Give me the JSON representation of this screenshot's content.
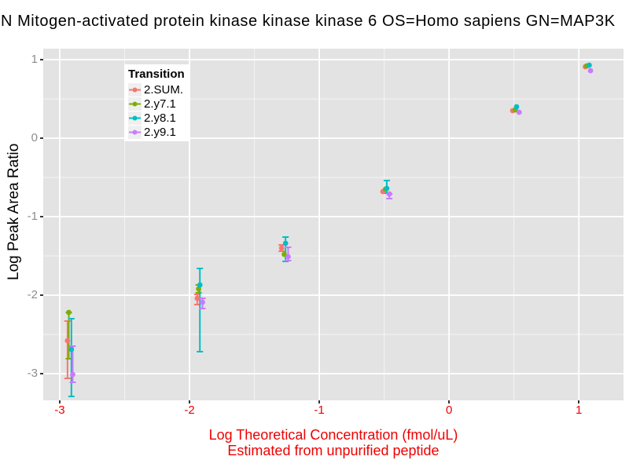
{
  "title": "N Mitogen-activated protein kinase kinase kinase 6 OS=Homo sapiens GN=MAP3K",
  "colors": {
    "panel_background": "#E3E3E3",
    "gridline": "#FFFFFF",
    "x_axis_text": "#EE0000",
    "y_axis_text": "#8E8E8E",
    "x_axis_title": "#EE0000",
    "y_axis_title": "#000000",
    "tick_mark": "#333333",
    "legend_background": "#FFFFFF",
    "legend_key_background": "#EFEFEF"
  },
  "chart_data": {
    "type": "scatter",
    "title": "N Mitogen-activated protein kinase kinase kinase 6 OS=Homo sapiens GN=MAP3K",
    "xlabel": "Log Theoretical Concentration (fmol/uL)",
    "xlabel_line2": "Estimated from unpurified peptide",
    "ylabel": "Log Peak Area Ratio",
    "xlim": [
      -3.127,
      1.344
    ],
    "ylim": [
      -3.34,
      1.14
    ],
    "xticks": [
      -3,
      -2,
      -1,
      0,
      1
    ],
    "yticks": [
      1,
      0,
      -1,
      -2,
      -3
    ],
    "minor_xticks": [
      -2.5,
      -1.5,
      -0.5,
      0.5
    ],
    "minor_yticks": [
      0.5,
      -0.5,
      -1.5,
      -2.5
    ],
    "grid": "white major+minor gridlines on gray panel",
    "legend_title": "Transition",
    "legend_position": "inside top-left",
    "error_bars": true,
    "series": [
      {
        "name": "2.SUM.",
        "color": "#F8766D",
        "points": [
          {
            "x": -2.94,
            "y": -2.58,
            "lo": -3.06,
            "hi": -2.33
          },
          {
            "x": -1.94,
            "y": -2.04,
            "lo": -2.12,
            "hi": -1.99
          },
          {
            "x": -1.29,
            "y": -1.4,
            "lo": -1.44,
            "hi": -1.36
          },
          {
            "x": -0.51,
            "y": -0.68,
            "lo": null,
            "hi": null
          },
          {
            "x": 0.49,
            "y": 0.35,
            "lo": null,
            "hi": null
          },
          {
            "x": 1.05,
            "y": 0.91,
            "lo": null,
            "hi": null
          }
        ]
      },
      {
        "name": "2.y7.1",
        "color": "#7CAE00",
        "points": [
          {
            "x": -2.93,
            "y": -2.22,
            "lo": -2.81,
            "hi": -2.22
          },
          {
            "x": -1.93,
            "y": -1.92,
            "lo": -1.97,
            "hi": -1.87
          },
          {
            "x": -1.27,
            "y": -1.48,
            "lo": null,
            "hi": null
          },
          {
            "x": -0.49,
            "y": -0.65,
            "lo": null,
            "hi": null
          },
          {
            "x": 0.51,
            "y": 0.36,
            "lo": null,
            "hi": null
          },
          {
            "x": 1.06,
            "y": 0.92,
            "lo": null,
            "hi": null
          }
        ]
      },
      {
        "name": "2.y8.1",
        "color": "#00BFC4",
        "points": [
          {
            "x": -2.91,
            "y": -2.69,
            "lo": -3.29,
            "hi": -2.3
          },
          {
            "x": -1.92,
            "y": -1.87,
            "lo": -2.72,
            "hi": -1.66
          },
          {
            "x": -1.26,
            "y": -1.34,
            "lo": -1.57,
            "hi": -1.26
          },
          {
            "x": -0.48,
            "y": -0.64,
            "lo": -0.7,
            "hi": -0.54
          },
          {
            "x": 0.52,
            "y": 0.4,
            "lo": null,
            "hi": null
          },
          {
            "x": 1.08,
            "y": 0.93,
            "lo": null,
            "hi": null
          }
        ]
      },
      {
        "name": "2.y9.1",
        "color": "#C77CFF",
        "points": [
          {
            "x": -2.9,
            "y": -3.01,
            "lo": -3.11,
            "hi": -2.65
          },
          {
            "x": -1.9,
            "y": -2.09,
            "lo": -2.17,
            "hi": -2.04
          },
          {
            "x": -1.24,
            "y": -1.51,
            "lo": -1.56,
            "hi": -1.39
          },
          {
            "x": -0.46,
            "y": -0.71,
            "lo": -0.77,
            "hi": -0.71
          },
          {
            "x": 0.54,
            "y": 0.33,
            "lo": null,
            "hi": null
          },
          {
            "x": 1.09,
            "y": 0.86,
            "lo": null,
            "hi": null
          }
        ]
      }
    ]
  }
}
